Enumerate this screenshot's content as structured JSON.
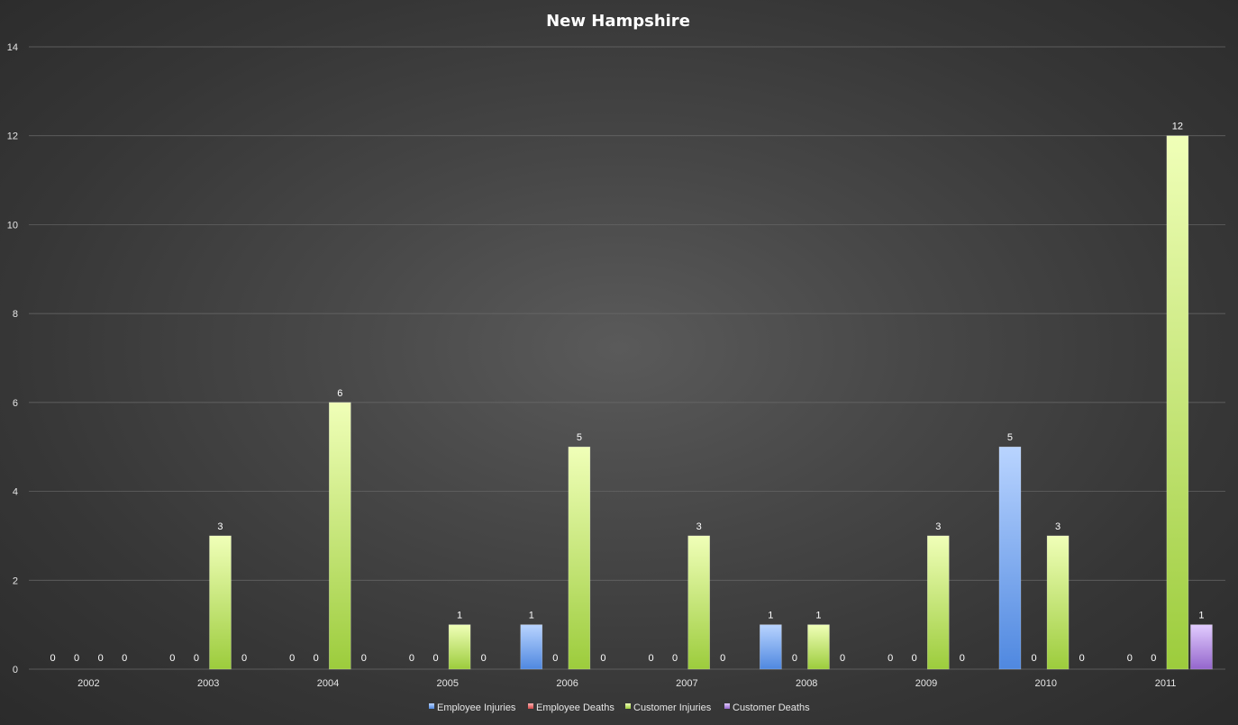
{
  "chart_data": {
    "type": "bar",
    "title": "New Hampshire",
    "xlabel": "",
    "ylabel": "",
    "ylim": [
      0,
      14
    ],
    "yticks": [
      0,
      2,
      4,
      6,
      8,
      10,
      12,
      14
    ],
    "grid": true,
    "legend_position": "bottom",
    "categories": [
      "2002",
      "2003",
      "2004",
      "2005",
      "2006",
      "2007",
      "2008",
      "2009",
      "2010",
      "2011"
    ],
    "series": [
      {
        "name": "Employee Injuries",
        "color": "#6fa8f0",
        "values": [
          0,
          0,
          0,
          0,
          1,
          0,
          1,
          0,
          5,
          0
        ]
      },
      {
        "name": "Employee Deaths",
        "color": "#e06060",
        "values": [
          0,
          0,
          0,
          0,
          0,
          0,
          0,
          0,
          0,
          0
        ]
      },
      {
        "name": "Customer Injuries",
        "color": "#b5e061",
        "values": [
          0,
          3,
          6,
          1,
          5,
          3,
          1,
          3,
          3,
          12
        ]
      },
      {
        "name": "Customer Deaths",
        "color": "#a982d8",
        "values": [
          0,
          0,
          0,
          0,
          0,
          0,
          0,
          0,
          0,
          1
        ]
      }
    ]
  }
}
